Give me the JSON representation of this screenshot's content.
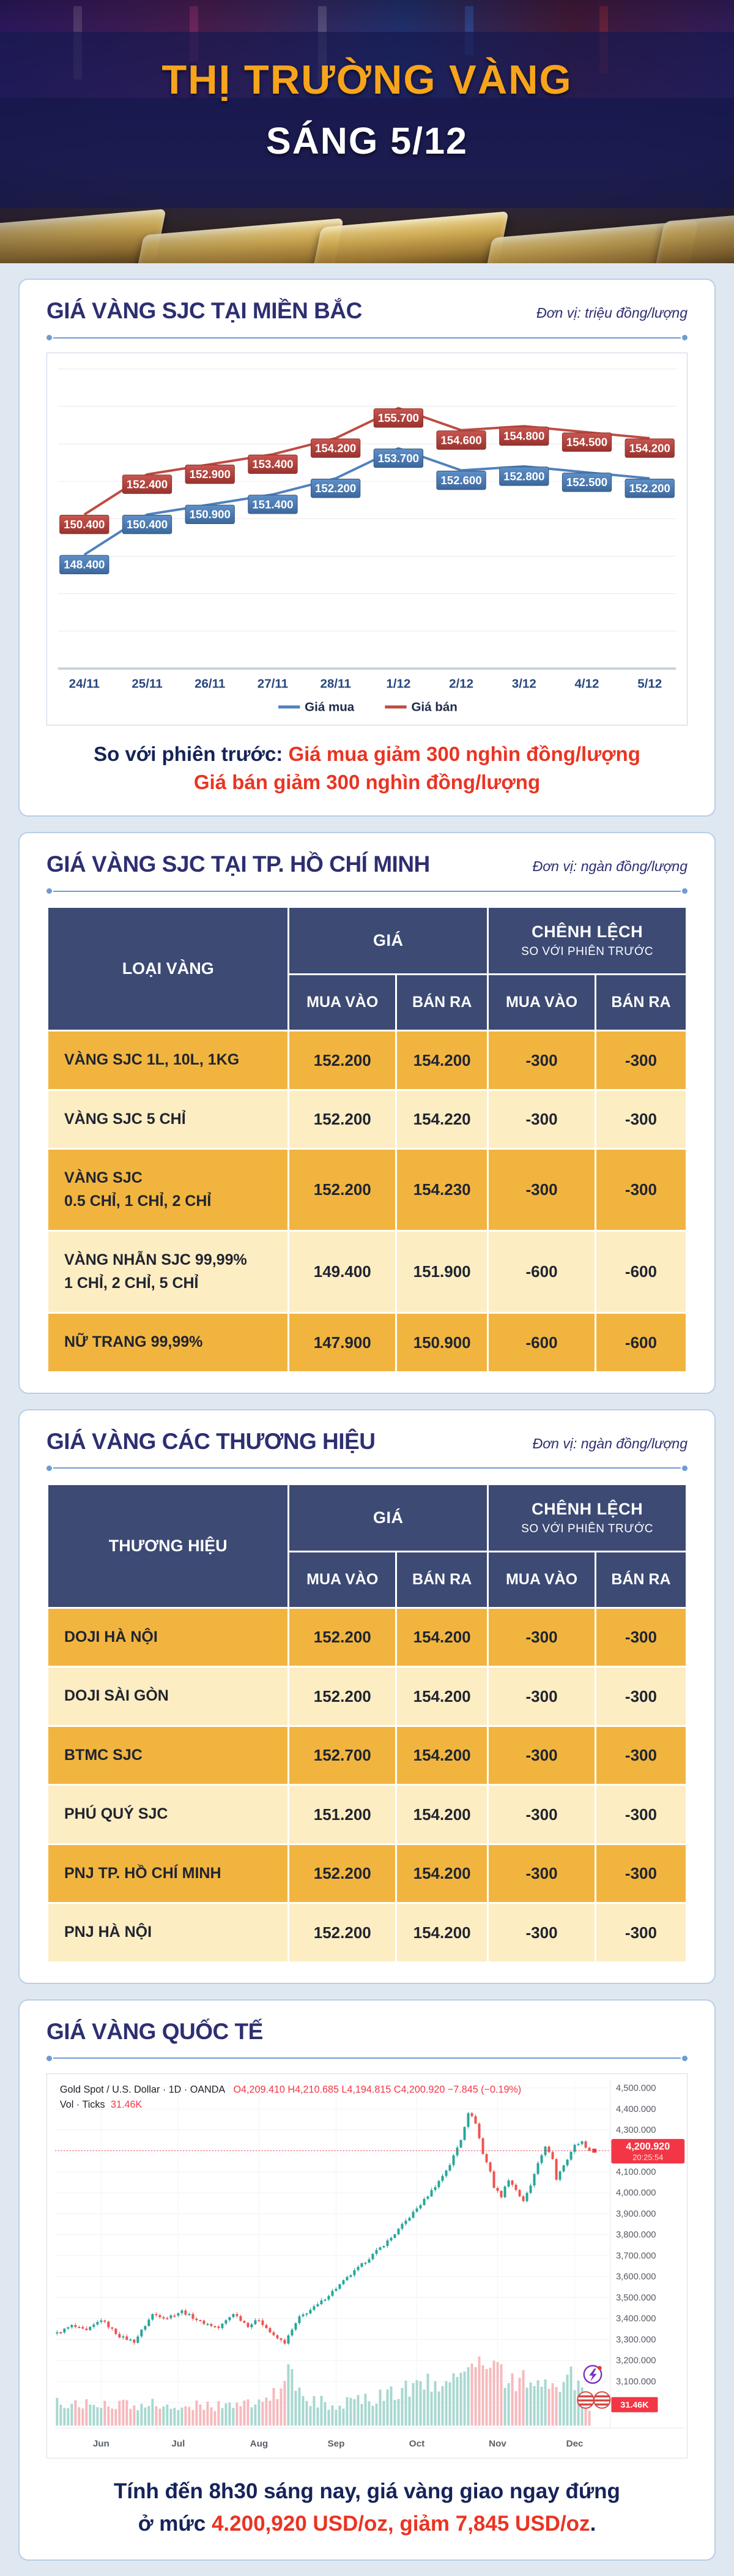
{
  "header": {
    "title_line1": "THỊ TRƯỜNG VÀNG",
    "title_line2": "SÁNG 5/12"
  },
  "section_north": {
    "title": "GIÁ VÀNG SJC TẠI MIỀN BẮC",
    "unit": "Đơn vị: triệu đồng/lượng",
    "summary_prefix": "So với phiên trước: ",
    "summary_line1": "Giá mua giảm 300 nghìn đồng/lượng",
    "summary_line2": "Giá bán giảm 300 nghìn đồng/lượng"
  },
  "section_hcmc": {
    "title": "GIÁ VÀNG SJC TẠI TP. HỒ CHÍ MINH",
    "unit": "Đơn vị: ngàn đồng/lượng",
    "table": {
      "col_type": "LOẠI VÀNG",
      "col_price": "GIÁ",
      "col_diff": "CHÊNH LỆCH",
      "col_diff_sub": "SO VỚI PHIÊN TRƯỚC",
      "col_buy": "MUA VÀO",
      "col_sell": "BÁN RA",
      "rows": [
        {
          "label": "VÀNG SJC 1L, 10L, 1KG",
          "label2": "",
          "buy": "152.200",
          "sell": "154.200",
          "diff_buy": "-300",
          "diff_sell": "-300"
        },
        {
          "label": "VÀNG SJC 5 CHỈ",
          "label2": "",
          "buy": "152.200",
          "sell": "154.220",
          "diff_buy": "-300",
          "diff_sell": "-300"
        },
        {
          "label": "VÀNG SJC",
          "label2": "0.5 CHỈ, 1 CHỈ, 2 CHỈ",
          "buy": "152.200",
          "sell": "154.230",
          "diff_buy": "-300",
          "diff_sell": "-300"
        },
        {
          "label": "VÀNG NHẪN SJC 99,99%",
          "label2": "1 CHỈ, 2 CHỈ, 5 CHỈ",
          "buy": "149.400",
          "sell": "151.900",
          "diff_buy": "-600",
          "diff_sell": "-600"
        },
        {
          "label": "NỮ TRANG 99,99%",
          "label2": "",
          "buy": "147.900",
          "sell": "150.900",
          "diff_buy": "-600",
          "diff_sell": "-600"
        }
      ]
    }
  },
  "section_brands": {
    "title": "GIÁ VÀNG CÁC THƯƠNG HIỆU",
    "unit": "Đơn vị: ngàn đồng/lượng",
    "table": {
      "col_type": "THƯƠNG HIỆU",
      "col_price": "GIÁ",
      "col_diff": "CHÊNH LỆCH",
      "col_diff_sub": "SO VỚI PHIÊN TRƯỚC",
      "col_buy": "MUA VÀO",
      "col_sell": "BÁN RA",
      "rows": [
        {
          "label": "DOJI HÀ NỘI",
          "label2": "",
          "buy": "152.200",
          "sell": "154.200",
          "diff_buy": "-300",
          "diff_sell": "-300"
        },
        {
          "label": "DOJI SÀI GÒN",
          "label2": "",
          "buy": "152.200",
          "sell": "154.200",
          "diff_buy": "-300",
          "diff_sell": "-300"
        },
        {
          "label": "BTMC SJC",
          "label2": "",
          "buy": "152.700",
          "sell": "154.200",
          "diff_buy": "-300",
          "diff_sell": "-300"
        },
        {
          "label": "PHÚ QUÝ SJC",
          "label2": "",
          "buy": "151.200",
          "sell": "154.200",
          "diff_buy": "-300",
          "diff_sell": "-300"
        },
        {
          "label": "PNJ TP. HỒ CHÍ MINH",
          "label2": "",
          "buy": "152.200",
          "sell": "154.200",
          "diff_buy": "-300",
          "diff_sell": "-300"
        },
        {
          "label": "PNJ HÀ NỘI",
          "label2": "",
          "buy": "152.200",
          "sell": "154.200",
          "diff_buy": "-300",
          "diff_sell": "-300"
        }
      ]
    }
  },
  "section_world": {
    "title": "GIÁ VÀNG QUỐC TẾ",
    "footer_line1": "Tính đến 8h30 sáng nay, giá vàng giao ngay đứng",
    "footer_prefix": "ở mức ",
    "footer_red": "4.200,920 USD/oz, giảm 7,845 USD/oz",
    "footer_suffix": "."
  },
  "chart_data": [
    {
      "type": "line",
      "title": "GIÁ VÀNG SJC TẠI MIỀN BẮC",
      "unit": "triệu đồng/lượng",
      "categories": [
        "24/11",
        "25/11",
        "26/11",
        "27/11",
        "28/11",
        "1/12",
        "2/12",
        "3/12",
        "4/12",
        "5/12"
      ],
      "series": [
        {
          "name": "Giá mua",
          "color": "#4f81bd",
          "values": [
            148.4,
            150.4,
            150.9,
            151.4,
            152.2,
            153.7,
            152.6,
            152.8,
            152.5,
            152.2
          ],
          "labels": [
            "148.400",
            "150.400",
            "150.900",
            "151.400",
            "152.200",
            "153.700",
            "152.600",
            "152.800",
            "152.500",
            "152.200"
          ]
        },
        {
          "name": "Giá bán",
          "color": "#bf4b43",
          "values": [
            150.4,
            152.4,
            152.9,
            153.4,
            154.2,
            155.7,
            154.6,
            154.8,
            154.5,
            154.2
          ],
          "labels": [
            "150.400",
            "152.400",
            "152.900",
            "153.400",
            "154.200",
            "155.700",
            "154.600",
            "154.800",
            "154.500",
            "154.200"
          ]
        }
      ],
      "legend_position": "bottom",
      "grid": true
    },
    {
      "type": "candlestick",
      "symbol_line": "Gold Spot / U.S. Dollar · 1D · OANDA",
      "ohlc_line": "O4,209.410  H4,210.685  L4,194.815  C4,200.920  −7.845 (−0.19%)",
      "vol_label": "Vol · Ticks",
      "vol_value": "31.46K",
      "last_price": 4200.92,
      "price_tag": "4,200.920",
      "price_tag_time": "20:25:54",
      "y_min": 3000,
      "y_max": 4500,
      "y_step": 100,
      "months": [
        "Jun",
        "Jul",
        "Aug",
        "Sep",
        "Oct",
        "Nov",
        "Dec"
      ],
      "month_indices": [
        12,
        33,
        55,
        76,
        98,
        120,
        141
      ],
      "n_candles": 146,
      "close_anchors": [
        [
          0,
          3330
        ],
        [
          4,
          3365
        ],
        [
          8,
          3340
        ],
        [
          12,
          3395
        ],
        [
          17,
          3315
        ],
        [
          21,
          3290
        ],
        [
          26,
          3420
        ],
        [
          30,
          3405
        ],
        [
          34,
          3435
        ],
        [
          39,
          3385
        ],
        [
          44,
          3355
        ],
        [
          48,
          3425
        ],
        [
          52,
          3365
        ],
        [
          55,
          3395
        ],
        [
          59,
          3315
        ],
        [
          62,
          3285
        ],
        [
          66,
          3405
        ],
        [
          71,
          3465
        ],
        [
          76,
          3545
        ],
        [
          81,
          3625
        ],
        [
          86,
          3705
        ],
        [
          91,
          3785
        ],
        [
          96,
          3885
        ],
        [
          100,
          3965
        ],
        [
          104,
          4055
        ],
        [
          107,
          4135
        ],
        [
          110,
          4255
        ],
        [
          112,
          4385
        ],
        [
          114,
          4335
        ],
        [
          116,
          4185
        ],
        [
          118,
          4105
        ],
        [
          119,
          4025
        ],
        [
          121,
          3985
        ],
        [
          123,
          4065
        ],
        [
          125,
          4015
        ],
        [
          127,
          3955
        ],
        [
          129,
          4035
        ],
        [
          131,
          4135
        ],
        [
          133,
          4225
        ],
        [
          135,
          4155
        ],
        [
          136,
          4065
        ],
        [
          137,
          4105
        ],
        [
          139,
          4165
        ],
        [
          141,
          4225
        ],
        [
          143,
          4245
        ],
        [
          144,
          4215
        ],
        [
          145,
          4200.92
        ]
      ],
      "volume_anchors": [
        [
          0,
          0.3
        ],
        [
          15,
          0.26
        ],
        [
          30,
          0.28
        ],
        [
          45,
          0.24
        ],
        [
          55,
          0.3
        ],
        [
          60,
          0.45
        ],
        [
          63,
          0.95
        ],
        [
          66,
          0.38
        ],
        [
          75,
          0.26
        ],
        [
          85,
          0.33
        ],
        [
          95,
          0.45
        ],
        [
          102,
          0.55
        ],
        [
          108,
          0.6
        ],
        [
          112,
          0.8
        ],
        [
          115,
          0.7
        ],
        [
          119,
          0.72
        ],
        [
          123,
          0.62
        ],
        [
          127,
          0.58
        ],
        [
          131,
          0.66
        ],
        [
          135,
          0.52
        ],
        [
          138,
          0.56
        ],
        [
          141,
          0.62
        ],
        [
          142,
          0.75
        ],
        [
          144,
          0.4
        ],
        [
          145,
          0.15
        ]
      ],
      "colors": {
        "up": "#26a69a",
        "down": "#ef5350",
        "vol_up": "#a7d8d0",
        "vol_down": "#f6b9bd",
        "line": "#f23645"
      }
    }
  ]
}
